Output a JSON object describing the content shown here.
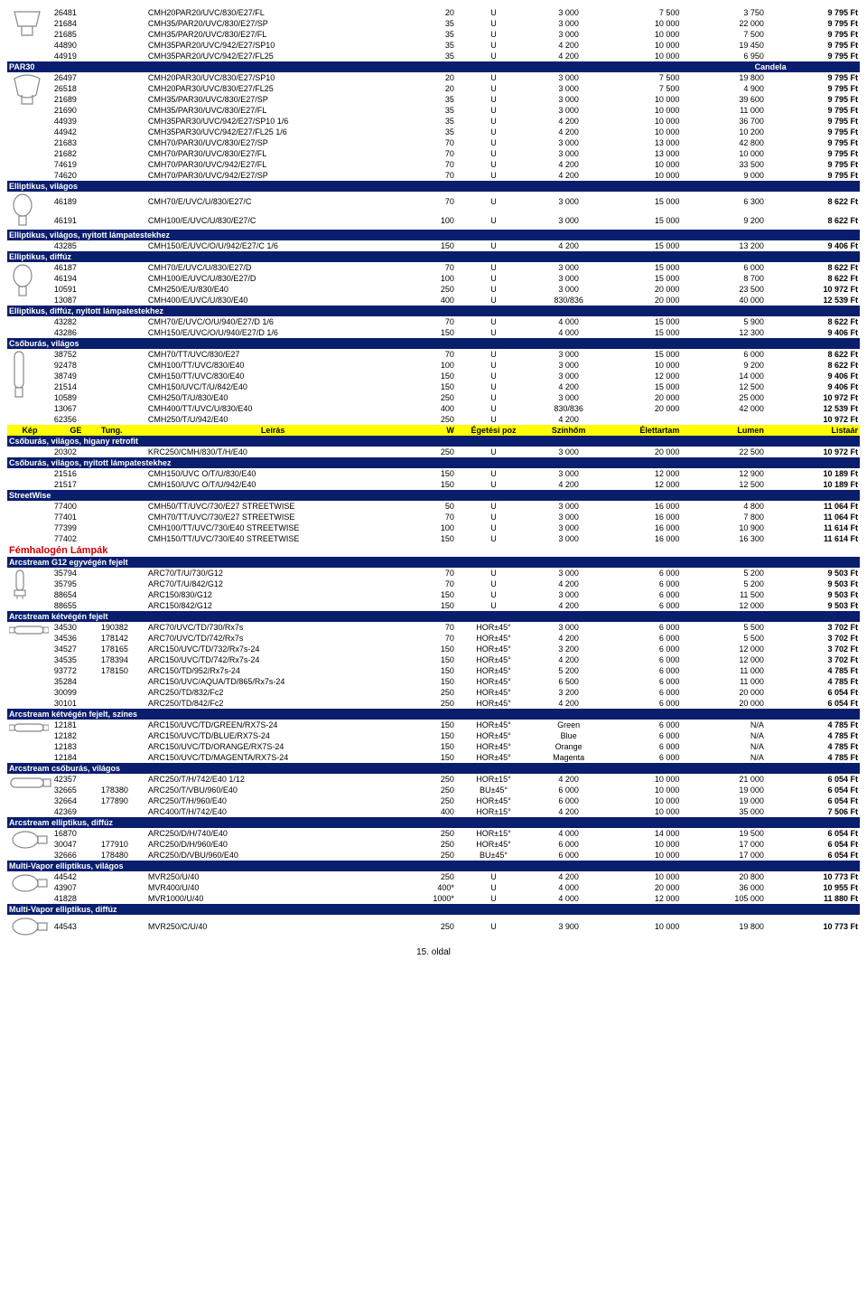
{
  "columns_yellow": [
    "Kép",
    "GE",
    "Tung.",
    "Leírás",
    "W",
    "Égetési poz",
    "Színhőm",
    "Élettartam",
    "Lumen",
    "Listaár"
  ],
  "candela_label": "Candela",
  "page_number": "15. oldal",
  "sections": [
    {
      "type": "rows",
      "icon": "reflector-a",
      "rows": [
        [
          "26481",
          "",
          "CMH20PAR20/UVC/830/E27/FL",
          "20",
          "U",
          "3 000",
          "7 500",
          "3 750",
          "9 795 Ft"
        ],
        [
          "21684",
          "",
          "CMH35/PAR20/UVC/830/E27/SP",
          "35",
          "U",
          "3 000",
          "10 000",
          "22 000",
          "9 795 Ft"
        ],
        [
          "21685",
          "",
          "CMH35/PAR20/UVC/830/E27/FL",
          "35",
          "U",
          "3 000",
          "10 000",
          "7 500",
          "9 795 Ft"
        ],
        [
          "44890",
          "",
          "CMH35PAR20/UVC/942/E27/SP10",
          "35",
          "U",
          "4 200",
          "10 000",
          "19 450",
          "9 795 Ft"
        ],
        [
          "44919",
          "",
          "CMH35PAR20/UVC/942/E27/FL25",
          "35",
          "U",
          "4 200",
          "10 000",
          "6 950",
          "9 795 Ft"
        ]
      ]
    },
    {
      "type": "header",
      "label": "PAR30",
      "candela": true
    },
    {
      "type": "rows",
      "icon": "par30",
      "rows": [
        [
          "26497",
          "",
          "CMH20PAR30/UVC/830/E27/SP10",
          "20",
          "U",
          "3 000",
          "7 500",
          "19 800",
          "9 795 Ft"
        ],
        [
          "26518",
          "",
          "CMH20PAR30/UVC/830/E27/FL25",
          "20",
          "U",
          "3 000",
          "7 500",
          "4 900",
          "9 795 Ft"
        ],
        [
          "21689",
          "",
          "CMH35/PAR30/UVC/830/E27/SP",
          "35",
          "U",
          "3 000",
          "10 000",
          "39 600",
          "9 795 Ft"
        ],
        [
          "21690",
          "",
          "CMH35/PAR30/UVC/830/E27/FL",
          "35",
          "U",
          "3 000",
          "10 000",
          "11 000",
          "9 795 Ft"
        ],
        [
          "44939",
          "",
          "CMH35PAR30/UVC/942/E27/SP10 1/6",
          "35",
          "U",
          "4 200",
          "10 000",
          "36 700",
          "9 795 Ft"
        ],
        [
          "44942",
          "",
          "CMH35PAR30/UVC/942/E27/FL25 1/6",
          "35",
          "U",
          "4 200",
          "10 000",
          "10 200",
          "9 795 Ft"
        ],
        [
          "21683",
          "",
          "CMH70/PAR30/UVC/830/E27/SP",
          "70",
          "U",
          "3 000",
          "13 000",
          "42 800",
          "9 795 Ft"
        ],
        [
          "21682",
          "",
          "CMH70/PAR30/UVC/830/E27/FL",
          "70",
          "U",
          "3 000",
          "13 000",
          "10 000",
          "9 795 Ft"
        ],
        [
          "74619",
          "",
          "CMH70/PAR30/UVC/942/E27/FL",
          "70",
          "U",
          "4 200",
          "10 000",
          "33 500",
          "9 795 Ft"
        ],
        [
          "74620",
          "",
          "CMH70/PAR30/UVC/942/E27/SP",
          "70",
          "U",
          "4 200",
          "10 000",
          "9 000",
          "9 795 Ft"
        ]
      ]
    },
    {
      "type": "header",
      "label": "Elliptikus, világos"
    },
    {
      "type": "rows",
      "icon": "elliptic",
      "rows": [
        [
          "46189",
          "",
          "CMH70/E/UVC/U/830/E27/C",
          "70",
          "U",
          "3 000",
          "15 000",
          "6 300",
          "8 622 Ft"
        ],
        [
          "46191",
          "",
          "CMH100/E/UVC/U/830/E27/C",
          "100",
          "U",
          "3 000",
          "15 000",
          "9 200",
          "8 622 Ft"
        ]
      ]
    },
    {
      "type": "header",
      "label": "Elliptikus, világos, nyitott lámpatestekhez"
    },
    {
      "type": "rows",
      "rows": [
        [
          "43285",
          "",
          "CMH150/E/UVC/O/U/942/E27/C 1/6",
          "150",
          "U",
          "4 200",
          "15 000",
          "13 200",
          "9 406 Ft"
        ]
      ]
    },
    {
      "type": "header",
      "label": "Elliptikus, diffúz"
    },
    {
      "type": "rows",
      "icon": "elliptic",
      "rows": [
        [
          "46187",
          "",
          "CMH70/E/UVC/U/830/E27/D",
          "70",
          "U",
          "3 000",
          "15 000",
          "6 000",
          "8 622 Ft"
        ],
        [
          "46194",
          "",
          "CMH100/E/UVC/U/830/E27/D",
          "100",
          "U",
          "3 000",
          "15 000",
          "8 700",
          "8 622 Ft"
        ],
        [
          "10591",
          "",
          "CMH250/E/U/830/E40",
          "250",
          "U",
          "3 000",
          "20 000",
          "23 500",
          "10 972 Ft"
        ],
        [
          "13087",
          "",
          "CMH400/E/UVC/U/830/E40",
          "400",
          "U",
          "830/836",
          "20 000",
          "40 000",
          "12 539 Ft"
        ]
      ]
    },
    {
      "type": "header",
      "label": "Elliptikus, diffúz, nyitott lámpatestekhez"
    },
    {
      "type": "rows",
      "rows": [
        [
          "43282",
          "",
          "CMH70/E/UVC/O/U/940/E27/D 1/6",
          "70",
          "U",
          "4 000",
          "15 000",
          "5 900",
          "8 622 Ft"
        ],
        [
          "43286",
          "",
          "CMH150/E/UVC/O/U/940/E27/D 1/6",
          "150",
          "U",
          "4 000",
          "15 000",
          "12 300",
          "9 406 Ft"
        ]
      ]
    },
    {
      "type": "header",
      "label": "Csőburás, világos"
    },
    {
      "type": "rows",
      "icon": "tube",
      "rows": [
        [
          "38752",
          "",
          "CMH70/TT/UVC/830/E27",
          "70",
          "U",
          "3 000",
          "15 000",
          "6 000",
          "8 622 Ft"
        ],
        [
          "92478",
          "",
          "CMH100/TT/UVC/830/E40",
          "100",
          "U",
          "3 000",
          "10 000",
          "9 200",
          "8 622 Ft"
        ],
        [
          "38749",
          "",
          "CMH150/TT/UVC/830/E40",
          "150",
          "U",
          "3 000",
          "12 000",
          "14 000",
          "9 406 Ft"
        ],
        [
          "21514",
          "",
          "CMH150/UVC/T/U/842/E40",
          "150",
          "U",
          "4 200",
          "15 000",
          "12 500",
          "9 406 Ft"
        ],
        [
          "10589",
          "",
          "CMH250/T/U/830/E40",
          "250",
          "U",
          "3 000",
          "20 000",
          "25 000",
          "10 972 Ft"
        ],
        [
          "13067",
          "",
          "CMH400/TT/UVC/U/830/E40",
          "400",
          "U",
          "830/836",
          "20 000",
          "42 000",
          "12 539 Ft"
        ],
        [
          "62356",
          "",
          "CMH250/T/U/942/E40",
          "250",
          "U",
          "4 200",
          "",
          "",
          "10 972 Ft"
        ]
      ]
    },
    {
      "type": "yellow"
    },
    {
      "type": "header",
      "label": "Csőburás, világos, higany retrofit"
    },
    {
      "type": "rows",
      "rows": [
        [
          "20302",
          "",
          "KRC250/CMH/830/T/H/E40",
          "250",
          "U",
          "3 000",
          "20 000",
          "22 500",
          "10 972 Ft"
        ]
      ]
    },
    {
      "type": "header",
      "label": "Csőburás, világos, nyitott lámpatestekhez"
    },
    {
      "type": "rows",
      "rows": [
        [
          "21516",
          "",
          "CMH150/UVC O/T/U/830/E40",
          "150",
          "U",
          "3 000",
          "12 000",
          "12 900",
          "10 189 Ft"
        ],
        [
          "21517",
          "",
          "CMH150/UVC O/T/U/942/E40",
          "150",
          "U",
          "4 200",
          "12 000",
          "12 500",
          "10 189 Ft"
        ]
      ]
    },
    {
      "type": "header",
      "label": "StreetWise"
    },
    {
      "type": "rows",
      "rows": [
        [
          "77400",
          "",
          "CMH50/TT/UVC/730/E27 STREETWISE",
          "50",
          "U",
          "3 000",
          "16 000",
          "4 800",
          "11 064 Ft"
        ],
        [
          "77401",
          "",
          "CMH70/TT/UVC/730/E27 STREETWISE",
          "70",
          "U",
          "3 000",
          "16 000",
          "7 800",
          "11 064 Ft"
        ],
        [
          "77399",
          "",
          "CMH100/TT/UVC/730/E40 STREETWISE",
          "100",
          "U",
          "3 000",
          "16 000",
          "10 900",
          "11 614 Ft"
        ],
        [
          "77402",
          "",
          "CMH150/TT/UVC/730/E40 STREETWISE",
          "150",
          "U",
          "3 000",
          "16 000",
          "16 300",
          "11 614 Ft"
        ]
      ]
    },
    {
      "type": "red",
      "label": "Fémhalogén Lámpák"
    },
    {
      "type": "header",
      "label": "Arcstream G12 egyvégén fejelt"
    },
    {
      "type": "rows",
      "icon": "g12",
      "rows": [
        [
          "35794",
          "",
          "ARC70/T/U/730/G12",
          "70",
          "U",
          "3 000",
          "6 000",
          "5 200",
          "9 503 Ft"
        ],
        [
          "35795",
          "",
          "ARC70/T/U/842/G12",
          "70",
          "U",
          "4 200",
          "6 000",
          "5 200",
          "9 503 Ft"
        ],
        [
          "88654",
          "",
          "ARC150/830/G12",
          "150",
          "U",
          "3 000",
          "6 000",
          "11 500",
          "9 503 Ft"
        ],
        [
          "88655",
          "",
          "ARC150/842/G12",
          "150",
          "U",
          "4 200",
          "6 000",
          "12 000",
          "9 503 Ft"
        ]
      ]
    },
    {
      "type": "header",
      "label": "Arcstream kétvégén fejelt"
    },
    {
      "type": "rows",
      "icon": "double-ended",
      "rows": [
        [
          "34530",
          "190382",
          "ARC70/UVC/TD/730/Rx7s",
          "70",
          "HOR±45°",
          "3 000",
          "6 000",
          "5 500",
          "3 702 Ft"
        ],
        [
          "34536",
          "178142",
          "ARC70/UVC/TD/742/Rx7s",
          "70",
          "HOR±45°",
          "4 200",
          "6 000",
          "5 500",
          "3 702 Ft"
        ],
        [
          "34527",
          "178165",
          "ARC150/UVC/TD/732/Rx7s-24",
          "150",
          "HOR±45°",
          "3 200",
          "6 000",
          "12 000",
          "3 702 Ft"
        ],
        [
          "34535",
          "178394",
          "ARC150/UVC/TD/742/Rx7s-24",
          "150",
          "HOR±45°",
          "4 200",
          "6 000",
          "12 000",
          "3 702 Ft"
        ],
        [
          "93772",
          "178150",
          "ARC150/TD/952/Rx7s-24",
          "150",
          "HOR±45°",
          "5 200",
          "6 000",
          "11 000",
          "4 785 Ft"
        ],
        [
          "35284",
          "",
          "ARC150/UVC/AQUA/TD/865/Rx7s-24",
          "150",
          "HOR±45°",
          "6 500",
          "6 000",
          "11 000",
          "4 785 Ft"
        ],
        [
          "30099",
          "",
          "ARC250/TD/832/Fc2",
          "250",
          "HOR±45°",
          "3 200",
          "6 000",
          "20 000",
          "6 054 Ft"
        ],
        [
          "30101",
          "",
          "ARC250/TD/842/Fc2",
          "250",
          "HOR±45°",
          "4 200",
          "6 000",
          "20 000",
          "6 054 Ft"
        ]
      ]
    },
    {
      "type": "header",
      "label": "Arcstream kétvégén fejelt, színes"
    },
    {
      "type": "rows",
      "icon": "double-ended",
      "rows": [
        [
          "12181",
          "",
          "ARC150/UVC/TD/GREEN/RX7S-24",
          "150",
          "HOR±45°",
          "Green",
          "6 000",
          "N/A",
          "4 785 Ft"
        ],
        [
          "12182",
          "",
          "ARC150/UVC/TD/BLUE/RX7S-24",
          "150",
          "HOR±45°",
          "Blue",
          "6 000",
          "N/A",
          "4 785 Ft"
        ],
        [
          "12183",
          "",
          "ARC150/UVC/TD/ORANGE/RX7S-24",
          "150",
          "HOR±45°",
          "Orange",
          "6 000",
          "N/A",
          "4 785 Ft"
        ],
        [
          "12184",
          "",
          "ARC150/UVC/TD/MAGENTA/RX7S-24",
          "150",
          "HOR±45°",
          "Magenta",
          "6 000",
          "N/A",
          "4 785 Ft"
        ]
      ]
    },
    {
      "type": "header",
      "label": "Arcstream csőburás, világos"
    },
    {
      "type": "rows",
      "icon": "tube-long",
      "rows": [
        [
          "42357",
          "",
          "ARC250/T/H/742/E40 1/12",
          "250",
          "HOR±15°",
          "4 200",
          "10 000",
          "21 000",
          "6 054 Ft"
        ],
        [
          "32665",
          "178380",
          "ARC250/T/VBU/960/E40",
          "250",
          "BU±45°",
          "6 000",
          "10 000",
          "19 000",
          "6 054 Ft"
        ],
        [
          "32664",
          "177890",
          "ARC250/T/H/960/E40",
          "250",
          "HOR±45°",
          "6 000",
          "10 000",
          "19 000",
          "6 054 Ft"
        ],
        [
          "42369",
          "",
          "ARC400/T/H/742/E40",
          "400",
          "HOR±15°",
          "4 200",
          "10 000",
          "35 000",
          "7 506 Ft"
        ]
      ]
    },
    {
      "type": "header",
      "label": "Arcstream elliptikus, diffúz"
    },
    {
      "type": "rows",
      "icon": "elliptic-wide",
      "rows": [
        [
          "16870",
          "",
          "ARC250/D/H/740/E40",
          "250",
          "HOR±15°",
          "4 000",
          "14 000",
          "19 500",
          "6 054 Ft"
        ],
        [
          "30047",
          "177910",
          "ARC250/D/H/960/E40",
          "250",
          "HOR±45°",
          "6 000",
          "10 000",
          "17 000",
          "6 054 Ft"
        ],
        [
          "32666",
          "178480",
          "ARC250/D/VBU/960/E40",
          "250",
          "BU±45°",
          "6 000",
          "10 000",
          "17 000",
          "6 054 Ft"
        ]
      ]
    },
    {
      "type": "header",
      "label": "Multi-Vapor elliptikus, világos"
    },
    {
      "type": "rows",
      "icon": "elliptic-wide",
      "rows": [
        [
          "44542",
          "",
          "MVR250/U/40",
          "250",
          "U",
          "4 200",
          "10 000",
          "20 800",
          "10 773 Ft"
        ],
        [
          "43907",
          "",
          "MVR400/U/40",
          "400*",
          "U",
          "4 000",
          "20 000",
          "36 000",
          "10 955 Ft"
        ],
        [
          "41828",
          "",
          "MVR1000/U/40",
          "1000*",
          "U",
          "4 000",
          "12 000",
          "105 000",
          "11 880 Ft"
        ]
      ]
    },
    {
      "type": "header",
      "label": "Multi-Vapor elliptikus, diffúz"
    },
    {
      "type": "rows",
      "icon": "elliptic-wide",
      "rows": [
        [
          "44543",
          "",
          "MVR250/C/U/40",
          "250",
          "U",
          "3 900",
          "10 000",
          "19 800",
          "10 773 Ft"
        ]
      ]
    }
  ],
  "icons": {
    "reflector-a": "<svg width='40' height='34' viewBox='0 0 40 34'><path d='M6 4 L34 4 L30 20 L10 20 Z M14 20 L14 30 L26 30 L26 20' fill='none' stroke='#888' stroke-width='1.2'/></svg>",
    "par30": "<svg width='40' height='40' viewBox='0 0 40 40'><path d='M6 6 Q20 -2 34 6 L30 24 Q20 30 10 24 Z M14 24 L14 34 L26 34 L26 24' fill='none' stroke='#888' stroke-width='1.2'/></svg>",
    "elliptic": "<svg width='30' height='40' viewBox='0 0 30 40'><ellipse cx='15' cy='14' rx='10' ry='12' fill='none' stroke='#888' stroke-width='1.2'/><rect x='11' y='26' width='8' height='10' fill='none' stroke='#888' stroke-width='1.2'/></svg>",
    "tube": "<svg width='22' height='55' viewBox='0 0 22 55'><rect x='6' y='2' width='10' height='40' rx='5' fill='none' stroke='#888' stroke-width='1.2'/><rect x='7' y='42' width='8' height='10' fill='none' stroke='#888' stroke-width='1.2'/></svg>",
    "g12": "<svg width='24' height='36' viewBox='0 0 24 36'><rect x='8' y='2' width='8' height='22' rx='4' fill='none' stroke='#888' stroke-width='1.2'/><rect x='6' y='24' width='12' height='6' fill='none' stroke='#888' stroke-width='1.2'/><line x1='9' y1='30' x2='9' y2='34' stroke='#888'/><line x1='15' y1='30' x2='15' y2='34' stroke='#888'/></svg>",
    "double-ended": "<svg width='44' height='16' viewBox='0 0 44 16'><rect x='6' y='4' width='32' height='8' rx='4' fill='none' stroke='#888' stroke-width='1.2'/><rect x='0' y='5' width='6' height='6' fill='none' stroke='#888' stroke-width='1'/><rect x='38' y='5' width='6' height='6' fill='none' stroke='#888' stroke-width='1'/></svg>",
    "tube-long": "<svg width='48' height='18' viewBox='0 0 48 18'><rect x='2' y='4' width='36' height='10' rx='5' fill='none' stroke='#888' stroke-width='1.2'/><rect x='38' y='5' width='8' height='8' fill='none' stroke='#888' stroke-width='1.2'/></svg>",
    "elliptic-wide": "<svg width='44' height='24' viewBox='0 0 44 24'><ellipse cx='18' cy='12' rx='14' ry='9' fill='none' stroke='#888' stroke-width='1.2'/><rect x='32' y='8' width='10' height='8' fill='none' stroke='#888' stroke-width='1.2'/></svg>"
  }
}
